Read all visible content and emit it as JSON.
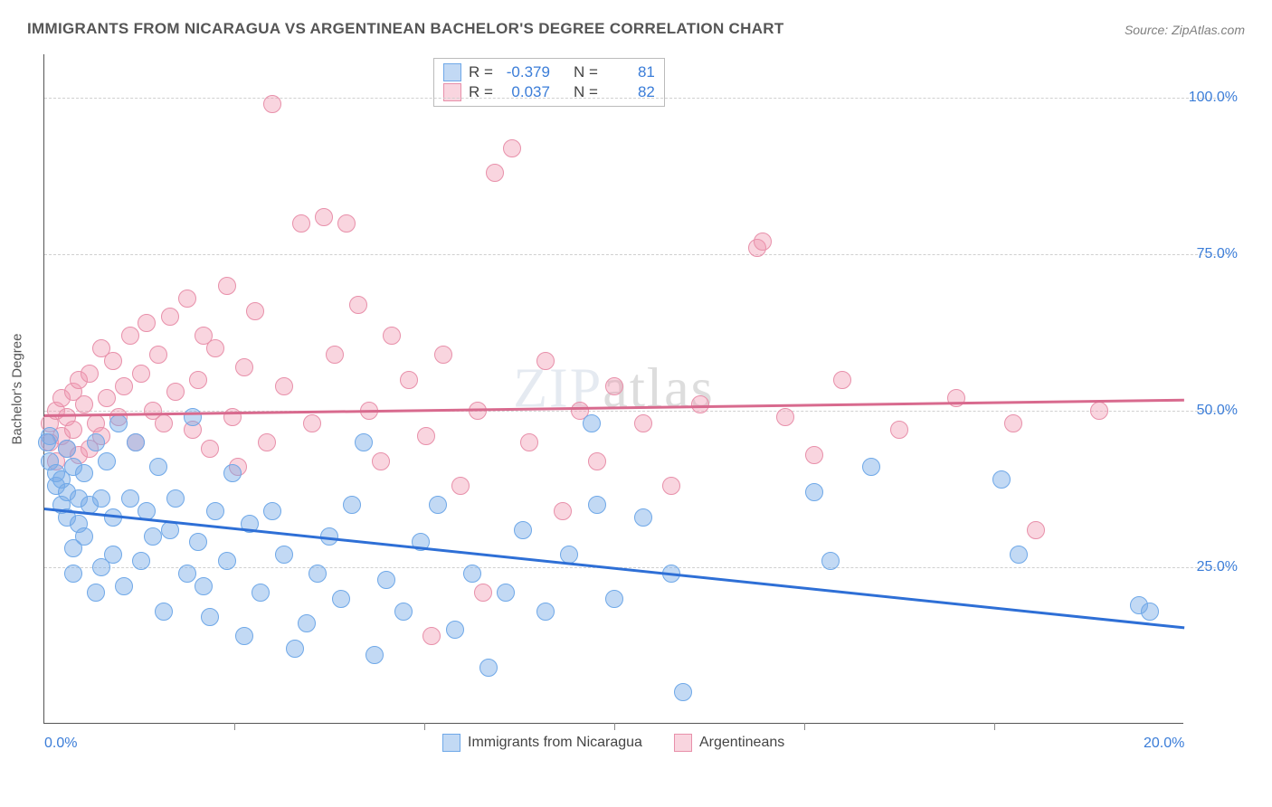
{
  "title": "IMMIGRANTS FROM NICARAGUA VS ARGENTINEAN BACHELOR'S DEGREE CORRELATION CHART",
  "source": "Source: ZipAtlas.com",
  "watermark_main": "ZIP",
  "watermark_tail": "atlas",
  "y_axis_label": "Bachelor's Degree",
  "x_range": [
    0,
    20
  ],
  "y_range": [
    0,
    107
  ],
  "x_ticks": [
    0,
    20
  ],
  "x_tick_labels": [
    "0.0%",
    "20.0%"
  ],
  "x_minor_ticks": [
    3.33,
    6.67,
    10.0,
    13.33,
    16.67
  ],
  "y_ticks": [
    25,
    50,
    75,
    100
  ],
  "y_tick_labels": [
    "25.0%",
    "50.0%",
    "75.0%",
    "100.0%"
  ],
  "colors": {
    "blue_fill": "rgba(120,170,230,0.45)",
    "blue_stroke": "#6fa8e8",
    "pink_fill": "rgba(240,150,175,0.40)",
    "pink_stroke": "#e890aa",
    "reg_blue": "#2e6fd6",
    "reg_pink": "#d86a8e",
    "axis_label": "#3b7dd8"
  },
  "point_radius": 10,
  "stats": [
    {
      "swatch_fill": "rgba(120,170,230,0.45)",
      "swatch_stroke": "#6fa8e8",
      "r": "-0.379",
      "n": "81"
    },
    {
      "swatch_fill": "rgba(240,150,175,0.40)",
      "swatch_stroke": "#e890aa",
      "r": "0.037",
      "n": "82"
    }
  ],
  "bottom_legend": [
    {
      "swatch_fill": "rgba(120,170,230,0.45)",
      "swatch_stroke": "#6fa8e8",
      "label": "Immigrants from Nicaragua"
    },
    {
      "swatch_fill": "rgba(240,150,175,0.40)",
      "swatch_stroke": "#e890aa",
      "label": "Argentineans"
    }
  ],
  "regression": {
    "blue": {
      "y_at_x0": 34.5,
      "y_at_x20": 15.5
    },
    "pink": {
      "y_at_x0": 49.5,
      "y_at_x20": 52.0
    }
  },
  "series_blue": [
    [
      0.1,
      46
    ],
    [
      0.1,
      42
    ],
    [
      0.2,
      38
    ],
    [
      0.2,
      40
    ],
    [
      0.3,
      39
    ],
    [
      0.3,
      35
    ],
    [
      0.4,
      44
    ],
    [
      0.4,
      37
    ],
    [
      0.4,
      33
    ],
    [
      0.5,
      41
    ],
    [
      0.5,
      28
    ],
    [
      0.5,
      24
    ],
    [
      0.6,
      32
    ],
    [
      0.6,
      36
    ],
    [
      0.7,
      40
    ],
    [
      0.7,
      30
    ],
    [
      0.8,
      35
    ],
    [
      0.9,
      45
    ],
    [
      0.9,
      21
    ],
    [
      1.0,
      25
    ],
    [
      1.0,
      36
    ],
    [
      1.1,
      42
    ],
    [
      1.2,
      27
    ],
    [
      1.2,
      33
    ],
    [
      1.3,
      48
    ],
    [
      1.4,
      22
    ],
    [
      1.5,
      36
    ],
    [
      1.6,
      45
    ],
    [
      1.7,
      26
    ],
    [
      1.8,
      34
    ],
    [
      1.9,
      30
    ],
    [
      2.0,
      41
    ],
    [
      2.1,
      18
    ],
    [
      2.2,
      31
    ],
    [
      2.3,
      36
    ],
    [
      2.5,
      24
    ],
    [
      2.6,
      49
    ],
    [
      2.7,
      29
    ],
    [
      2.8,
      22
    ],
    [
      2.9,
      17
    ],
    [
      3.0,
      34
    ],
    [
      3.2,
      26
    ],
    [
      3.3,
      40
    ],
    [
      3.5,
      14
    ],
    [
      3.6,
      32
    ],
    [
      3.8,
      21
    ],
    [
      4.0,
      34
    ],
    [
      4.2,
      27
    ],
    [
      4.4,
      12
    ],
    [
      4.6,
      16
    ],
    [
      4.8,
      24
    ],
    [
      5.0,
      30
    ],
    [
      5.2,
      20
    ],
    [
      5.4,
      35
    ],
    [
      5.6,
      45
    ],
    [
      5.8,
      11
    ],
    [
      6.0,
      23
    ],
    [
      6.3,
      18
    ],
    [
      6.6,
      29
    ],
    [
      6.9,
      35
    ],
    [
      7.2,
      15
    ],
    [
      7.5,
      24
    ],
    [
      7.8,
      9
    ],
    [
      8.1,
      21
    ],
    [
      8.4,
      31
    ],
    [
      8.8,
      18
    ],
    [
      9.2,
      27
    ],
    [
      9.6,
      48
    ],
    [
      9.7,
      35
    ],
    [
      10.0,
      20
    ],
    [
      10.5,
      33
    ],
    [
      11.0,
      24
    ],
    [
      11.2,
      5
    ],
    [
      13.5,
      37
    ],
    [
      13.8,
      26
    ],
    [
      14.5,
      41
    ],
    [
      16.8,
      39
    ],
    [
      17.1,
      27
    ],
    [
      19.2,
      19
    ],
    [
      19.4,
      18
    ],
    [
      0.05,
      45
    ]
  ],
  "series_pink": [
    [
      0.1,
      48
    ],
    [
      0.1,
      45
    ],
    [
      0.2,
      50
    ],
    [
      0.2,
      42
    ],
    [
      0.3,
      52
    ],
    [
      0.3,
      46
    ],
    [
      0.4,
      49
    ],
    [
      0.4,
      44
    ],
    [
      0.5,
      53
    ],
    [
      0.5,
      47
    ],
    [
      0.6,
      55
    ],
    [
      0.6,
      43
    ],
    [
      0.7,
      51
    ],
    [
      0.8,
      56
    ],
    [
      0.8,
      44
    ],
    [
      0.9,
      48
    ],
    [
      1.0,
      60
    ],
    [
      1.0,
      46
    ],
    [
      1.1,
      52
    ],
    [
      1.2,
      58
    ],
    [
      1.3,
      49
    ],
    [
      1.4,
      54
    ],
    [
      1.5,
      62
    ],
    [
      1.6,
      45
    ],
    [
      1.7,
      56
    ],
    [
      1.8,
      64
    ],
    [
      1.9,
      50
    ],
    [
      2.0,
      59
    ],
    [
      2.1,
      48
    ],
    [
      2.2,
      65
    ],
    [
      2.3,
      53
    ],
    [
      2.5,
      68
    ],
    [
      2.6,
      47
    ],
    [
      2.7,
      55
    ],
    [
      2.8,
      62
    ],
    [
      2.9,
      44
    ],
    [
      3.0,
      60
    ],
    [
      3.2,
      70
    ],
    [
      3.3,
      49
    ],
    [
      3.4,
      41
    ],
    [
      3.5,
      57
    ],
    [
      3.7,
      66
    ],
    [
      3.9,
      45
    ],
    [
      4.0,
      99
    ],
    [
      4.2,
      54
    ],
    [
      4.5,
      80
    ],
    [
      4.7,
      48
    ],
    [
      4.9,
      81
    ],
    [
      5.1,
      59
    ],
    [
      5.3,
      80
    ],
    [
      5.5,
      67
    ],
    [
      5.7,
      50
    ],
    [
      5.9,
      42
    ],
    [
      6.1,
      62
    ],
    [
      6.4,
      55
    ],
    [
      6.7,
      46
    ],
    [
      6.8,
      14
    ],
    [
      7.0,
      59
    ],
    [
      7.3,
      38
    ],
    [
      7.6,
      50
    ],
    [
      7.7,
      21
    ],
    [
      7.9,
      88
    ],
    [
      8.2,
      92
    ],
    [
      8.5,
      45
    ],
    [
      8.8,
      58
    ],
    [
      9.1,
      34
    ],
    [
      9.4,
      50
    ],
    [
      9.7,
      42
    ],
    [
      10.0,
      54
    ],
    [
      10.5,
      48
    ],
    [
      11.0,
      38
    ],
    [
      11.5,
      51
    ],
    [
      12.5,
      76
    ],
    [
      12.6,
      77
    ],
    [
      13.0,
      49
    ],
    [
      13.5,
      43
    ],
    [
      14.0,
      55
    ],
    [
      15.0,
      47
    ],
    [
      16.0,
      52
    ],
    [
      17.0,
      48
    ],
    [
      17.4,
      31
    ],
    [
      18.5,
      50
    ]
  ]
}
